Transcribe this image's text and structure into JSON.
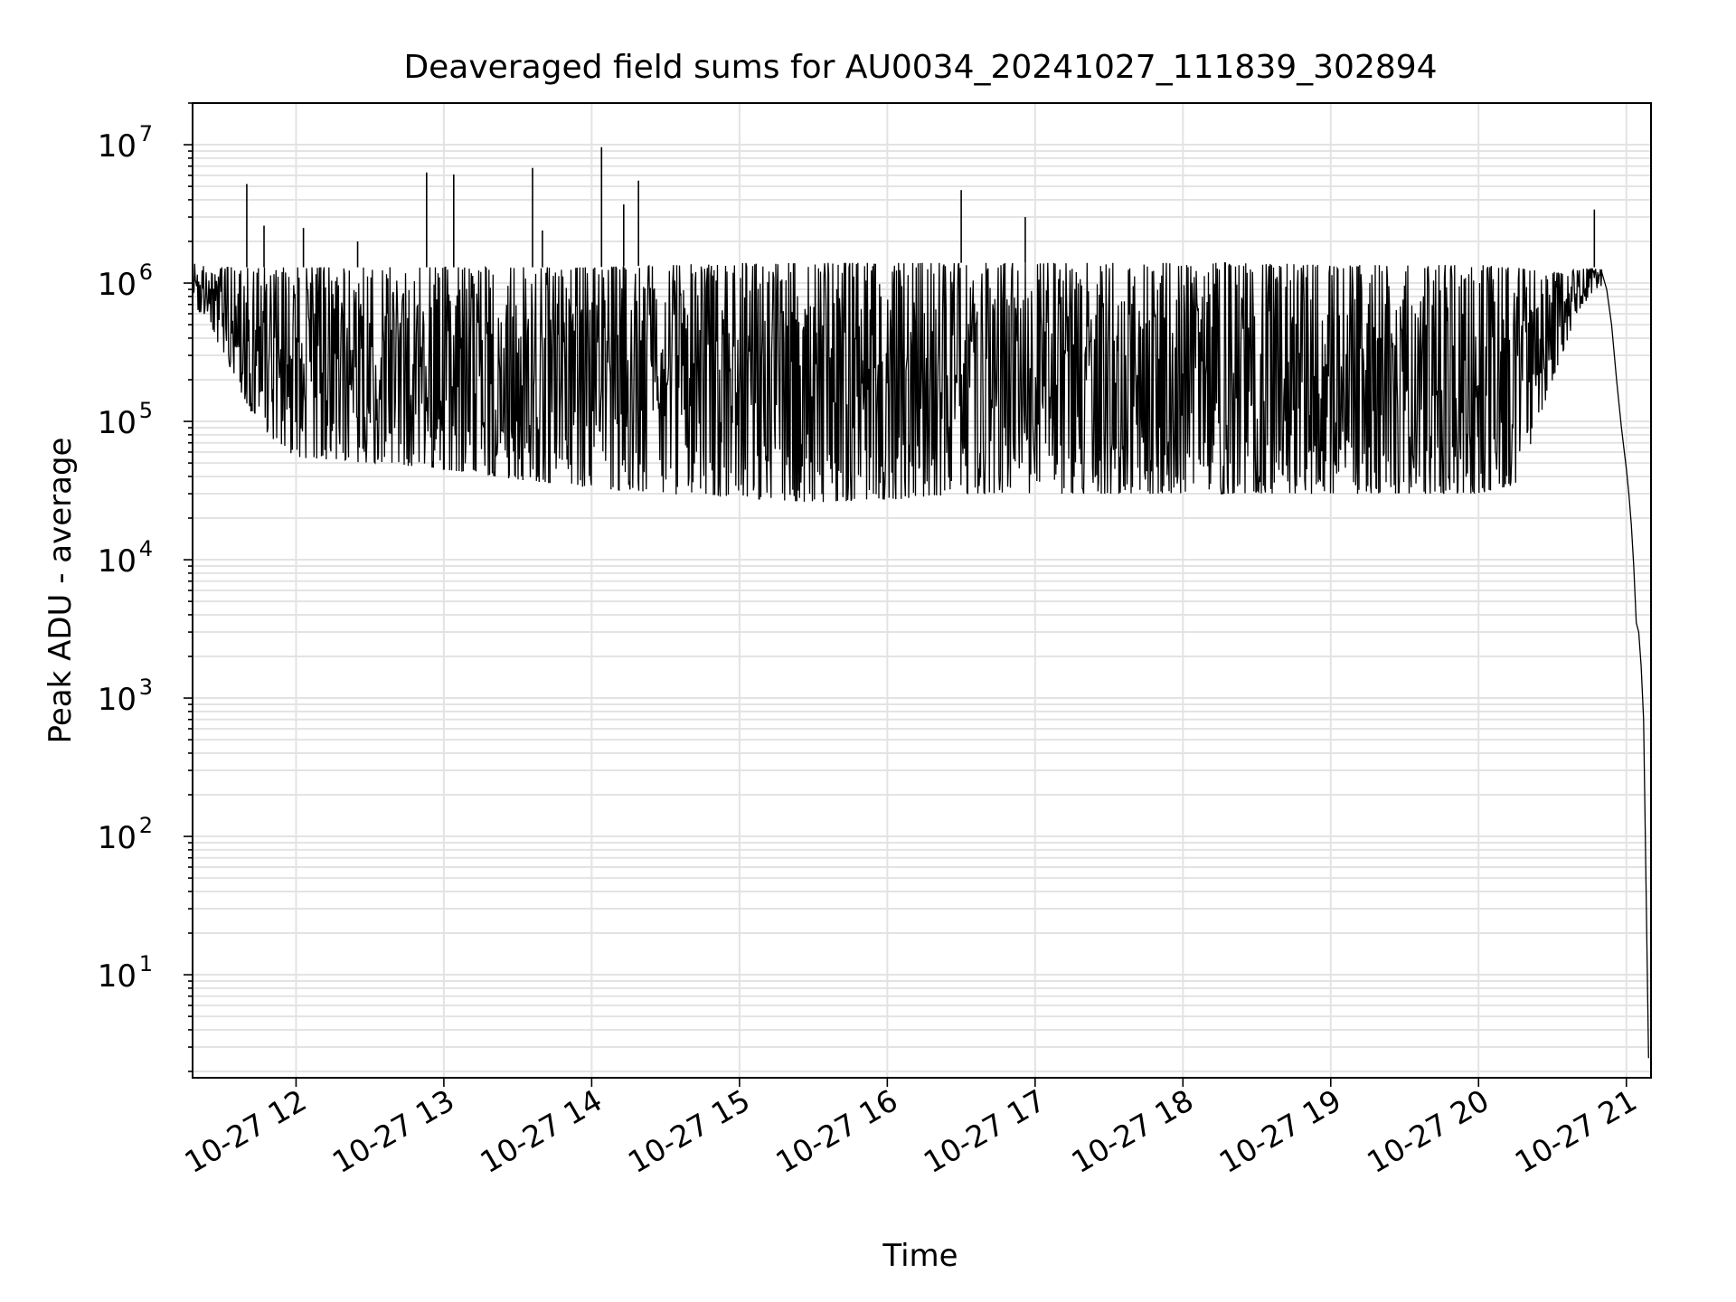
{
  "chart_data": {
    "type": "line",
    "title": "Deaveraged field sums for AU0034_20241027_111839_302894",
    "xlabel": "Time",
    "ylabel": "Peak ADU - average",
    "x_scale": "time",
    "y_scale": "log",
    "xlim": [
      "2024-10-27 11:18",
      "2024-10-27 21:10"
    ],
    "ylim": [
      1.8,
      20000000
    ],
    "x_ticks": [
      {
        "value": "2024-10-27 12:00",
        "label": "10-27 12"
      },
      {
        "value": "2024-10-27 13:00",
        "label": "10-27 13"
      },
      {
        "value": "2024-10-27 14:00",
        "label": "10-27 14"
      },
      {
        "value": "2024-10-27 15:00",
        "label": "10-27 15"
      },
      {
        "value": "2024-10-27 16:00",
        "label": "10-27 16"
      },
      {
        "value": "2024-10-27 17:00",
        "label": "10-27 17"
      },
      {
        "value": "2024-10-27 18:00",
        "label": "10-27 18"
      },
      {
        "value": "2024-10-27 19:00",
        "label": "10-27 19"
      },
      {
        "value": "2024-10-27 20:00",
        "label": "10-27 20"
      },
      {
        "value": "2024-10-27 21:00",
        "label": "10-27 21"
      }
    ],
    "y_ticks": [
      {
        "value": 10,
        "base": "10",
        "exp": "1"
      },
      {
        "value": 100,
        "base": "10",
        "exp": "2"
      },
      {
        "value": 1000,
        "base": "10",
        "exp": "3"
      },
      {
        "value": 10000,
        "base": "10",
        "exp": "4"
      },
      {
        "value": 100000,
        "base": "10",
        "exp": "5"
      },
      {
        "value": 1000000,
        "base": "10",
        "exp": "6"
      },
      {
        "value": 10000000,
        "base": "10",
        "exp": "7"
      }
    ],
    "grid": true,
    "grid_minor": true,
    "colors": {
      "line": "#000000",
      "grid": "#e3e3e3",
      "axes": "#000000"
    },
    "series": [
      {
        "band": {
          "x": [
            "2024-10-27 11:18",
            "2024-10-27 11:25",
            "2024-10-27 11:35",
            "2024-10-27 11:45",
            "2024-10-27 12:00",
            "2024-10-27 12:30",
            "2024-10-27 13:00",
            "2024-10-27 13:30",
            "2024-10-27 14:00",
            "2024-10-27 14:30",
            "2024-10-27 15:00",
            "2024-10-27 15:30",
            "2024-10-27 16:00",
            "2024-10-27 16:30",
            "2024-10-27 17:00",
            "2024-10-27 17:30",
            "2024-10-27 18:00",
            "2024-10-27 18:30",
            "2024-10-27 19:00",
            "2024-10-27 19:30",
            "2024-10-27 20:00",
            "2024-10-27 20:15",
            "2024-10-27 20:20",
            "2024-10-27 20:30",
            "2024-10-27 20:40",
            "2024-10-27 20:47",
            "2024-10-27 20:50"
          ],
          "low": [
            700000,
            500000,
            200000,
            90000,
            55000,
            50000,
            45000,
            38000,
            33000,
            30000,
            28000,
            26000,
            27000,
            30000,
            30000,
            30000,
            30000,
            30000,
            30000,
            30000,
            30000,
            35000,
            60000,
            200000,
            600000,
            900000,
            950000
          ],
          "high": [
            1400000,
            1300000,
            1300000,
            1300000,
            1300000,
            1300000,
            1300000,
            1300000,
            1300000,
            1350000,
            1400000,
            1400000,
            1400000,
            1400000,
            1400000,
            1400000,
            1400000,
            1400000,
            1350000,
            1350000,
            1350000,
            1300000,
            1250000,
            1200000,
            1250000,
            1300000,
            1250000
          ]
        },
        "spikes": [
          {
            "x": "2024-10-27 11:40",
            "y": 5200000
          },
          {
            "x": "2024-10-27 11:47",
            "y": 2600000
          },
          {
            "x": "2024-10-27 12:03",
            "y": 2500000
          },
          {
            "x": "2024-10-27 12:25",
            "y": 2000000
          },
          {
            "x": "2024-10-27 12:53",
            "y": 6300000
          },
          {
            "x": "2024-10-27 13:04",
            "y": 6100000
          },
          {
            "x": "2024-10-27 13:36",
            "y": 6800000
          },
          {
            "x": "2024-10-27 13:40",
            "y": 2400000
          },
          {
            "x": "2024-10-27 14:04",
            "y": 9600000
          },
          {
            "x": "2024-10-27 14:13",
            "y": 3700000
          },
          {
            "x": "2024-10-27 14:19",
            "y": 5500000
          },
          {
            "x": "2024-10-27 16:30",
            "y": 4700000
          },
          {
            "x": "2024-10-27 16:56",
            "y": 3000000
          },
          {
            "x": "2024-10-27 20:47",
            "y": 3400000
          }
        ],
        "tail": {
          "x": [
            "2024-10-27 20:50",
            "2024-10-27 20:52",
            "2024-10-27 20:54",
            "2024-10-27 20:56",
            "2024-10-27 20:58",
            "2024-10-27 21:00",
            "2024-10-27 21:01",
            "2024-10-27 21:02",
            "2024-10-27 21:03",
            "2024-10-27 21:04",
            "2024-10-27 21:05",
            "2024-10-27 21:06",
            "2024-10-27 21:07",
            "2024-10-27 21:08",
            "2024-10-27 21:09"
          ],
          "y": [
            1200000,
            900000,
            500000,
            200000,
            90000,
            45000,
            30000,
            18000,
            9000,
            3500,
            3000,
            1700,
            700,
            40,
            2.5
          ]
        }
      }
    ]
  }
}
